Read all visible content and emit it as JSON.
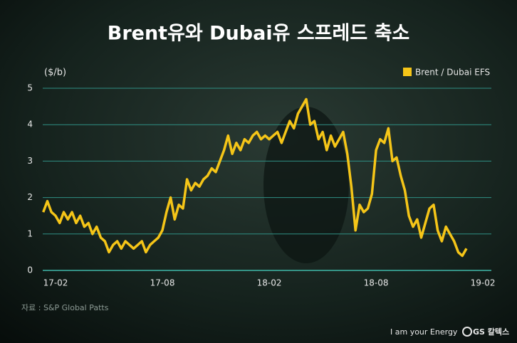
{
  "chart_data": {
    "type": "line",
    "title": "Brent유와 Dubai유 스프레드 축소",
    "y_label": "($/b)",
    "source": "자료 : S&P Global Patts",
    "slogan": "I am your Energy",
    "brand": "GS 칼텍스",
    "categories": [
      null,
      null,
      null,
      "17-02",
      null,
      null,
      null,
      null,
      null,
      null,
      null,
      null,
      null,
      null,
      null,
      null,
      null,
      null,
      null,
      null,
      null,
      null,
      null,
      null,
      null,
      null,
      null,
      null,
      null,
      "17-08",
      null,
      null,
      null,
      null,
      null,
      null,
      null,
      null,
      null,
      null,
      null,
      null,
      null,
      null,
      null,
      null,
      null,
      null,
      null,
      null,
      null,
      null,
      null,
      null,
      null,
      "18-02",
      null,
      null,
      null,
      null,
      null,
      null,
      null,
      null,
      null,
      null,
      null,
      null,
      null,
      null,
      null,
      null,
      null,
      null,
      null,
      null,
      null,
      null,
      null,
      null,
      null,
      "18-08",
      null,
      null,
      null,
      null,
      null,
      null,
      null,
      null,
      null,
      null,
      null,
      null,
      null,
      null,
      null,
      null,
      null,
      null,
      null,
      null,
      null,
      null,
      null,
      null,
      null,
      "19-02"
    ],
    "series": [
      {
        "name": "Brent / Dubai EFS",
        "color": "#f5c518",
        "values": [
          1.6,
          1.9,
          1.6,
          1.5,
          1.3,
          1.6,
          1.4,
          1.6,
          1.3,
          1.5,
          1.2,
          1.3,
          1.0,
          1.2,
          0.9,
          0.8,
          0.5,
          0.7,
          0.8,
          0.6,
          0.8,
          0.7,
          0.6,
          0.7,
          0.8,
          0.5,
          0.7,
          0.8,
          0.9,
          1.1,
          1.6,
          2.0,
          1.4,
          1.8,
          1.7,
          2.5,
          2.2,
          2.4,
          2.3,
          2.5,
          2.6,
          2.8,
          2.7,
          3.0,
          3.3,
          3.7,
          3.2,
          3.5,
          3.3,
          3.6,
          3.5,
          3.7,
          3.8,
          3.6,
          3.7,
          3.6,
          3.7,
          3.8,
          3.5,
          3.8,
          4.1,
          3.9,
          4.3,
          4.5,
          4.7,
          4.0,
          4.1,
          3.6,
          3.8,
          3.3,
          3.7,
          3.4,
          3.6,
          3.8,
          3.2,
          2.3,
          1.1,
          1.8,
          1.6,
          1.7,
          2.1,
          3.3,
          3.6,
          3.5,
          3.9,
          3.0,
          3.1,
          2.6,
          2.2,
          1.5,
          1.2,
          1.4,
          0.9,
          1.3,
          1.7,
          1.8,
          1.1,
          0.8,
          1.2,
          1.0,
          0.8,
          0.5,
          0.4,
          0.6,
          null,
          null,
          null,
          null
        ]
      }
    ],
    "ylim": [
      0,
      5
    ],
    "yticks": [
      0,
      1,
      2,
      3,
      4,
      5
    ],
    "grid": true,
    "legend": "top-right"
  }
}
